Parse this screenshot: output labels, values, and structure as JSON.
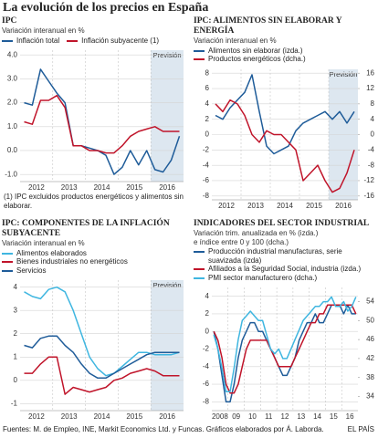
{
  "title": "La evolución de los precios en España",
  "source": "Fuentes: M. de Empleo, INE, Markit Economics Ltd. y Funcas. Gráficos elaborados por Á. Laborda.",
  "publisher": "EL PAÍS",
  "chart_data": [
    {
      "type": "line",
      "title": "IPC",
      "subtitle": [
        "Variación interanual en %"
      ],
      "legend_layout": "row",
      "categories": [
        "2012",
        null,
        null,
        null,
        "2013",
        null,
        null,
        null,
        "2014",
        null,
        null,
        null,
        "2015",
        null,
        null,
        null,
        "2016",
        null,
        null,
        null
      ],
      "series": [
        {
          "name": "Inflación total",
          "color": "#1f5c99",
          "values": [
            2.0,
            1.9,
            3.4,
            2.9,
            2.4,
            2.0,
            0.2,
            0.2,
            0.1,
            0.0,
            -0.2,
            -1.0,
            -0.7,
            0.0,
            -0.6,
            0.0,
            -0.8,
            -0.9,
            -0.4,
            0.6
          ]
        },
        {
          "name": "Inflación subyacente (1)",
          "color": "#c0142a",
          "values": [
            1.2,
            1.1,
            2.1,
            2.1,
            2.3,
            1.8,
            0.2,
            0.2,
            0.0,
            0.0,
            -0.1,
            -0.1,
            0.2,
            0.6,
            0.8,
            0.9,
            1.0,
            0.8,
            0.8,
            0.8
          ]
        }
      ],
      "ylim": [
        -1.3,
        4.2
      ],
      "yticks": [
        {
          "value": -1,
          "label": "-1.0"
        },
        {
          "value": 0,
          "label": "0.0"
        },
        {
          "value": 1,
          "label": "1.0"
        },
        {
          "value": 2,
          "label": "2.0"
        },
        {
          "value": 3,
          "label": "3.0"
        },
        {
          "value": 4,
          "label": "4.0"
        }
      ],
      "grid": true,
      "forecast": "Previsión",
      "note": "(1) IPC excluidos productos energéticos y alimentos sin elaborar."
    },
    {
      "type": "line",
      "title": "IPC: ALIMENTOS SIN ELABORAR Y ENERGÍA",
      "subtitle": [
        "Variación interanual en %"
      ],
      "legend_layout": "column",
      "categories": [
        "2012",
        null,
        null,
        null,
        "2013",
        null,
        null,
        null,
        "2014",
        null,
        null,
        null,
        "2015",
        null,
        null,
        null,
        "2016",
        null,
        null,
        null
      ],
      "series": [
        {
          "name": "Alimentos sin elaborar (izda.)",
          "color": "#1f5c99",
          "values": [
            2.5,
            2.0,
            3.5,
            4.5,
            5.5,
            7.8,
            3.0,
            -1.5,
            -2.5,
            -2.0,
            -1.5,
            0.5,
            1.5,
            2.0,
            2.5,
            3.0,
            2.0,
            3.0,
            1.5,
            3.0
          ]
        },
        {
          "name": "Productos energéticos (dcha.)",
          "color": "#c0142a",
          "axis": "y2",
          "values": [
            8,
            6,
            9,
            8,
            5,
            0,
            -2,
            1,
            0,
            0,
            -2,
            -4,
            -12,
            -10,
            -8,
            -12,
            -15,
            -14,
            -10,
            -4
          ]
        }
      ],
      "ylim": [
        -8.5,
        8.5
      ],
      "yticks": [
        -8,
        -6,
        -4,
        -2,
        0,
        2,
        4,
        6,
        8
      ],
      "y2lim": [
        -17,
        17
      ],
      "y2ticks": [
        -16,
        -12,
        -8,
        -4,
        0,
        4,
        8,
        12,
        16
      ],
      "grid": true,
      "forecast": "Previsión"
    },
    {
      "type": "line",
      "title": "IPC: COMPONENTES DE LA INFLACIÓN SUBYACENTE",
      "subtitle": [
        "Variación interanual en %"
      ],
      "legend_layout": "column",
      "categories": [
        "2012",
        null,
        null,
        null,
        "2013",
        null,
        null,
        null,
        "2014",
        null,
        null,
        null,
        "2015",
        null,
        null,
        null,
        "2016",
        null,
        null,
        null
      ],
      "series": [
        {
          "name": "Alimentos elaborados",
          "color": "#3fb6e0",
          "values": [
            3.8,
            3.6,
            3.5,
            3.9,
            4.0,
            3.8,
            3.0,
            2.0,
            1.0,
            0.5,
            0.2,
            0.3,
            0.6,
            0.9,
            1.2,
            1.2,
            1.1,
            1.1,
            1.1,
            1.2
          ]
        },
        {
          "name": "Bienes industriales no energéticos",
          "color": "#c0142a",
          "values": [
            0.3,
            0.3,
            0.7,
            1.0,
            1.0,
            -0.6,
            -0.3,
            -0.4,
            -0.5,
            -0.4,
            -0.3,
            0.0,
            0.1,
            0.3,
            0.4,
            0.5,
            0.4,
            0.2,
            0.2,
            0.2
          ]
        },
        {
          "name": "Servicios",
          "color": "#1f5c99",
          "values": [
            1.5,
            1.4,
            1.8,
            1.9,
            1.9,
            1.5,
            1.2,
            0.7,
            0.3,
            0.1,
            0.1,
            0.3,
            0.5,
            0.7,
            0.9,
            1.1,
            1.2,
            1.2,
            1.2,
            1.2
          ]
        }
      ],
      "ylim": [
        -1.3,
        4.3
      ],
      "yticks": [
        -1,
        0,
        1,
        2,
        3,
        4
      ],
      "grid": true,
      "forecast": "Previsión"
    },
    {
      "type": "line",
      "title": "INDICADORES DEL SECTOR INDUSTRIAL",
      "subtitle": [
        "Variación trim. anualizada en % (izda.)",
        "e índice entre 0 y 100 (dcha.)"
      ],
      "legend_layout": "column",
      "categories": [
        "2008",
        null,
        null,
        null,
        "09",
        null,
        null,
        null,
        "10",
        null,
        null,
        null,
        "11",
        null,
        null,
        null,
        "12",
        null,
        null,
        null,
        "13",
        null,
        null,
        null,
        "14",
        null,
        null,
        null,
        "15",
        null,
        null,
        null,
        "16",
        null,
        null,
        null
      ],
      "series": [
        {
          "name": "Producción industrial manufacturas, serie suavizada (izda)",
          "color": "#1f5c99",
          "values": [
            0,
            -2,
            -5,
            -8,
            -8,
            -6,
            -3,
            -1,
            0,
            1,
            1,
            0,
            0,
            -1,
            -2,
            -3,
            -4,
            -5,
            -5,
            -4,
            -3,
            -1,
            0,
            1,
            1,
            2,
            1,
            1,
            2,
            3,
            3,
            3,
            2,
            3,
            2,
            2
          ]
        },
        {
          "name": "Afiliados a la Seguridad Social, industria (izda.)",
          "color": "#c0142a",
          "values": [
            0,
            -1,
            -3,
            -6,
            -7,
            -7,
            -6,
            -4,
            -2,
            -1,
            -1,
            -1,
            -1,
            -1,
            -2,
            -3,
            -4,
            -4,
            -4,
            -4,
            -3,
            -2,
            -1,
            0,
            1,
            1,
            2,
            2,
            3,
            3,
            3,
            3,
            3,
            3,
            3,
            2
          ]
        },
        {
          "name": "PMI sector manufacturero (dcha.)",
          "color": "#3fb6e0",
          "axis": "y2",
          "values": [
            47,
            44,
            40,
            35,
            35,
            40,
            46,
            50,
            51,
            52,
            51,
            50,
            50,
            47,
            44,
            43,
            44,
            42,
            42,
            44,
            46,
            48,
            50,
            51,
            52,
            53,
            53,
            54,
            54,
            55,
            53,
            53,
            54,
            52,
            53,
            55
          ]
        }
      ],
      "ylim": [
        -9,
        5
      ],
      "yticks": [
        -8,
        -6,
        -4,
        -2,
        0,
        2,
        4
      ],
      "y2lim": [
        31,
        57
      ],
      "y2ticks": [
        34,
        38,
        42,
        46,
        50,
        54
      ],
      "grid": true
    }
  ]
}
